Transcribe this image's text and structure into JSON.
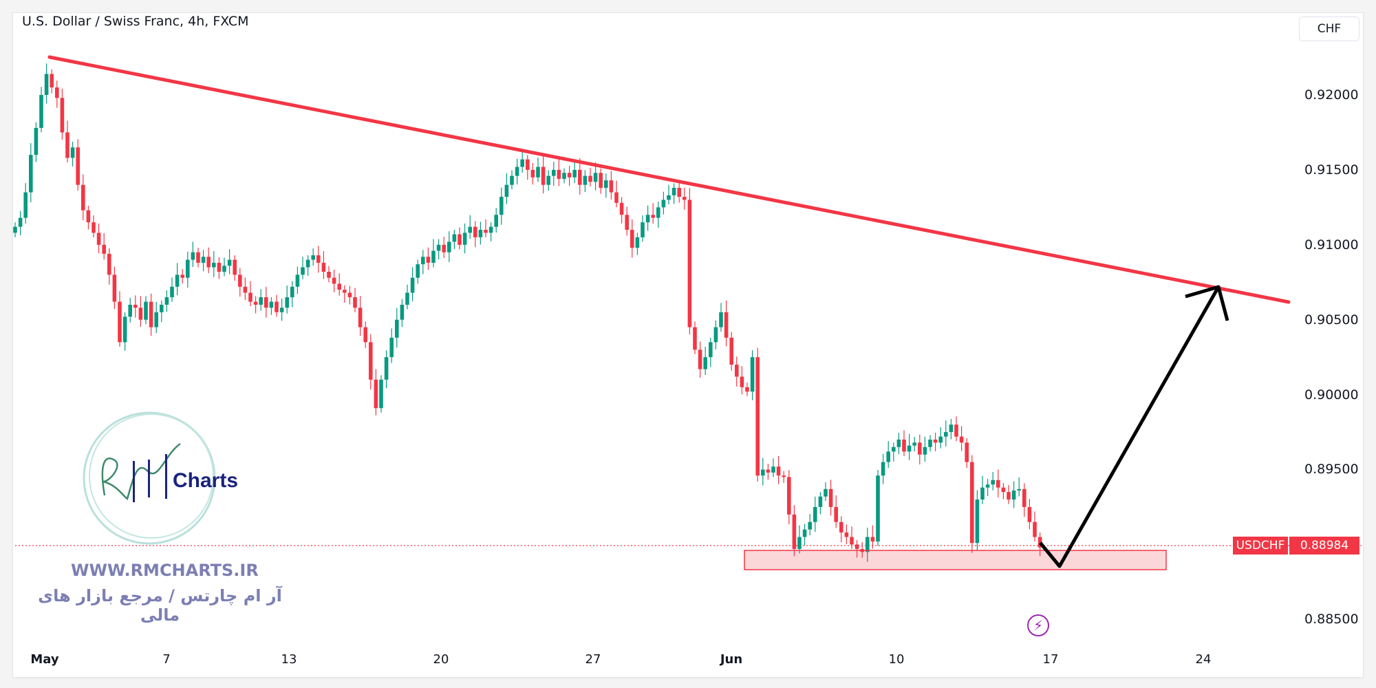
{
  "header": {
    "title": "U.S. Dollar / Swiss Franc, 4h, FXCM",
    "currency_button": "CHF"
  },
  "price_scale": {
    "ticks": [
      "0.92000",
      "0.91500",
      "0.91000",
      "0.90500",
      "0.90000",
      "0.89500",
      "0.88500"
    ]
  },
  "time_scale": {
    "ticks": [
      "May",
      "7",
      "13",
      "20",
      "27",
      "Jun",
      "10",
      "17",
      "24"
    ]
  },
  "last_price": {
    "symbol": "USDCHF",
    "value": "0.88984",
    "color": "#f23645"
  },
  "watermark": {
    "logo_text": "RM Charts",
    "url": "WWW.RMCHARTS.IR",
    "tagline": "آر ام چارتس / مرجع بازار های مالی"
  },
  "icons": {
    "event": "lightning-icon"
  },
  "colors": {
    "up": "#089981",
    "down": "#f23645",
    "trendline": "#f23645",
    "zone": "#f23645",
    "arrow": "#000000"
  },
  "chart_data": {
    "type": "candlestick",
    "symbol": "USDCHF",
    "interval": "4h",
    "ylim": [
      0.8835,
      0.9245
    ],
    "closes": [
      0.9112,
      0.9118,
      0.9135,
      0.916,
      0.9178,
      0.92,
      0.9214,
      0.9205,
      0.9198,
      0.9175,
      0.9158,
      0.9165,
      0.914,
      0.9123,
      0.9115,
      0.9108,
      0.91,
      0.9094,
      0.908,
      0.9062,
      0.9035,
      0.9052,
      0.906,
      0.9058,
      0.905,
      0.9062,
      0.9045,
      0.9055,
      0.906,
      0.9065,
      0.9072,
      0.908,
      0.9078,
      0.909,
      0.9095,
      0.9088,
      0.9092,
      0.9085,
      0.9088,
      0.9082,
      0.9086,
      0.909,
      0.908,
      0.9072,
      0.9068,
      0.9062,
      0.906,
      0.9065,
      0.9058,
      0.9062,
      0.9055,
      0.9058,
      0.9065,
      0.9072,
      0.908,
      0.9085,
      0.909,
      0.9093,
      0.9088,
      0.9082,
      0.9078,
      0.9074,
      0.907,
      0.9068,
      0.9065,
      0.9058,
      0.9045,
      0.9035,
      0.901,
      0.8991,
      0.901,
      0.9025,
      0.9038,
      0.905,
      0.906,
      0.9068,
      0.9078,
      0.9087,
      0.9092,
      0.9088,
      0.9096,
      0.91,
      0.9095,
      0.9102,
      0.9107,
      0.91,
      0.9108,
      0.9112,
      0.9105,
      0.911,
      0.9108,
      0.9112,
      0.912,
      0.9132,
      0.914,
      0.9146,
      0.9152,
      0.9157,
      0.915,
      0.9145,
      0.9152,
      0.914,
      0.9146,
      0.915,
      0.9144,
      0.9148,
      0.9145,
      0.915,
      0.914,
      0.9146,
      0.9142,
      0.9148,
      0.9138,
      0.9143,
      0.9135,
      0.9128,
      0.912,
      0.911,
      0.9098,
      0.9105,
      0.9115,
      0.912,
      0.9118,
      0.9125,
      0.913,
      0.9133,
      0.9138,
      0.9132,
      0.913,
      0.9045,
      0.903,
      0.9017,
      0.9025,
      0.9035,
      0.9045,
      0.9055,
      0.9038,
      0.902,
      0.9012,
      0.9005,
      0.9002,
      0.9025,
      0.8946,
      0.895,
      0.8948,
      0.8952,
      0.8946,
      0.8945,
      0.892,
      0.8897,
      0.8905,
      0.891,
      0.8915,
      0.8925,
      0.8932,
      0.8937,
      0.8925,
      0.8915,
      0.8908,
      0.8905,
      0.89,
      0.8897,
      0.8895,
      0.8905,
      0.8902,
      0.8946,
      0.8955,
      0.8962,
      0.8965,
      0.897,
      0.8962,
      0.8966,
      0.8968,
      0.896,
      0.8965,
      0.897,
      0.8968,
      0.8972,
      0.8975,
      0.898,
      0.8972,
      0.8968,
      0.8955,
      0.8901,
      0.893,
      0.8938,
      0.894,
      0.8943,
      0.8938,
      0.8935,
      0.893,
      0.8936,
      0.8937,
      0.8925,
      0.8915,
      0.8905,
      0.8898
    ],
    "first_open": 0.9108,
    "trendline": {
      "from_price": 0.9225,
      "to_price": 0.9062
    },
    "support_zone": {
      "top": 0.8895,
      "bottom": 0.8882
    },
    "projection": {
      "low": 0.8883,
      "target": 0.907
    }
  }
}
